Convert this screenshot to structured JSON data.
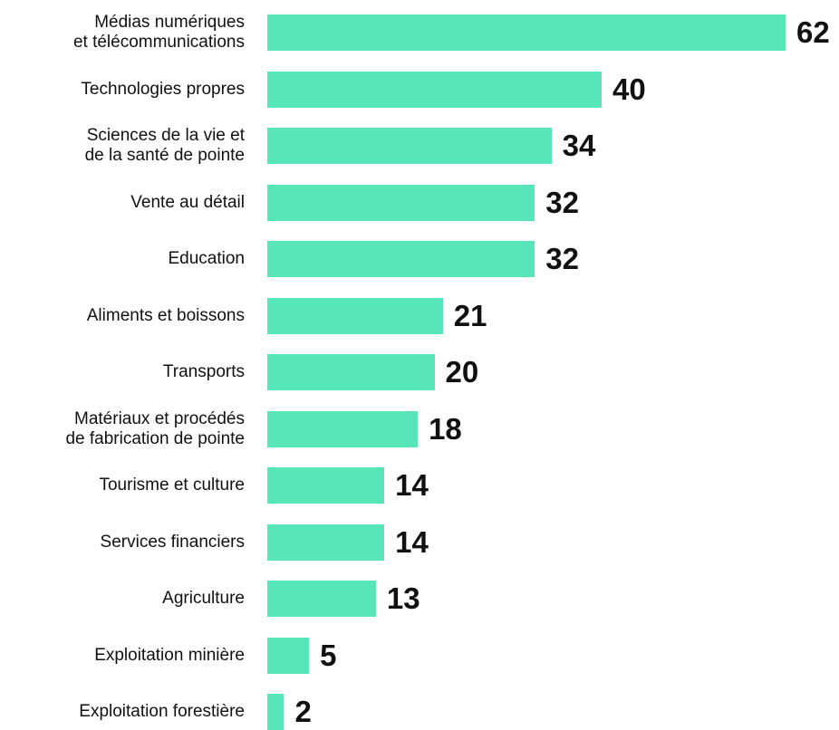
{
  "chart_data": {
    "type": "bar",
    "orientation": "horizontal",
    "color": "#56e6b7",
    "categories": [
      "Médias numériques\net télécommunications",
      "Technologies propres",
      "Sciences de la vie et\nde la santé de pointe",
      "Vente au détail",
      "Education",
      "Aliments et boissons",
      "Transports",
      "Matériaux et procédés\nde fabrication de pointe",
      "Tourisme et culture",
      "Services financiers",
      "Agriculture",
      "Exploitation minière",
      "Exploitation forestière"
    ],
    "values": [
      62,
      40,
      34,
      32,
      32,
      21,
      20,
      18,
      14,
      14,
      13,
      5,
      2
    ]
  }
}
